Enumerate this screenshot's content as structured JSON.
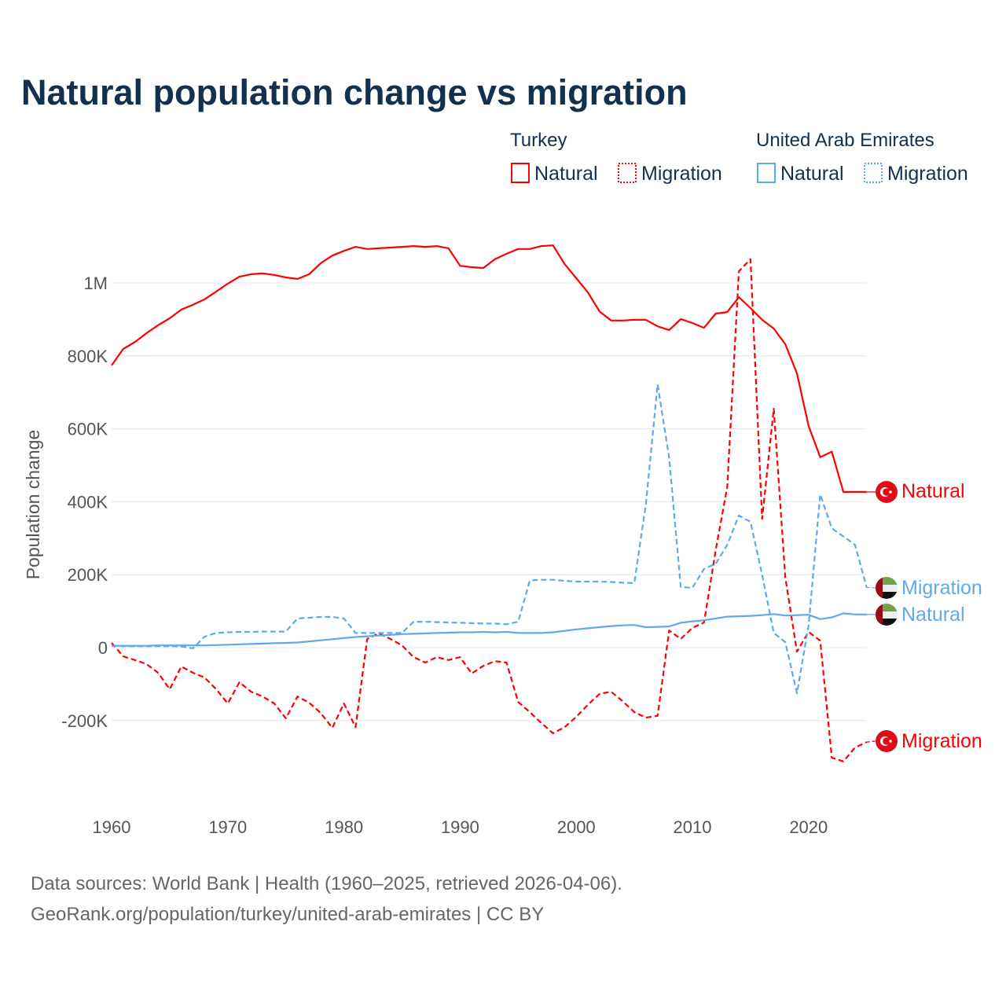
{
  "title": "Natural population change vs migration",
  "legend": {
    "groups": [
      {
        "name": "Turkey",
        "color": "#ff0000",
        "items": [
          "Natural",
          "Migration"
        ]
      },
      {
        "name": "United Arab Emirates",
        "color": "#5ea8ee",
        "items": [
          "Natural",
          "Migration"
        ]
      }
    ]
  },
  "end_labels": {
    "turkey_natural": "Natural",
    "uae_migration": "Migration",
    "uae_natural": "Natural",
    "turkey_migration": "Migration"
  },
  "footer": {
    "line1": "Data sources: World Bank | Health (1960–2025, retrieved 2026-04-06).",
    "line2": "GeoRank.org/population/turkey/united-arab-emirates | CC BY"
  },
  "chart_data": {
    "type": "line",
    "title": "Natural population change vs migration",
    "xlabel": "",
    "ylabel": "Population change",
    "xlim": [
      1960,
      2025
    ],
    "ylim": [
      -400000,
      1150000
    ],
    "grid": true,
    "legend_position": "top-right",
    "x_ticks": [
      1960,
      1970,
      1980,
      1990,
      2000,
      2010,
      2020
    ],
    "x_tick_labels": [
      "1960",
      "1970",
      "1980",
      "1990",
      "2000",
      "2010",
      "2020"
    ],
    "y_ticks": [
      -200000,
      0,
      200000,
      400000,
      600000,
      800000,
      1000000
    ],
    "y_tick_labels": [
      "-200K",
      "0",
      "200K",
      "400K",
      "600K",
      "800K",
      "1M"
    ],
    "x_start": 1960,
    "series": [
      {
        "name": "Turkey Natural",
        "color": "#ff0000",
        "dash": false,
        "values": [
          774000,
          819000,
          838000,
          862000,
          884000,
          903000,
          927000,
          940000,
          955000,
          976000,
          998000,
          1017000,
          1024000,
          1026000,
          1022000,
          1015000,
          1011000,
          1024000,
          1054000,
          1075000,
          1088000,
          1099000,
          1093000,
          1095000,
          1097000,
          1099000,
          1101000,
          1099000,
          1101000,
          1095000,
          1047000,
          1043000,
          1041000,
          1065000,
          1080000,
          1093000,
          1093000,
          1101000,
          1103000,
          1052000,
          1013000,
          974000,
          922000,
          897000,
          897000,
          899000,
          899000,
          881000,
          871000,
          901000,
          890000,
          877000,
          916000,
          920000,
          961000,
          931000,
          899000,
          875000,
          832000,
          752000,
          608000,
          522000,
          537000,
          427000,
          427000,
          427000
        ]
      },
      {
        "name": "Turkey Migration",
        "color": "#ff0000",
        "dash": true,
        "values": [
          13000,
          -24000,
          -34000,
          -45000,
          -69000,
          -114000,
          -52000,
          -69000,
          -82000,
          -114000,
          -153000,
          -95000,
          -121000,
          -134000,
          -153000,
          -194000,
          -134000,
          -151000,
          -179000,
          -220000,
          -153000,
          -218000,
          24000,
          39000,
          24000,
          6000,
          -26000,
          -41000,
          -26000,
          -34000,
          -26000,
          -71000,
          -50000,
          -37000,
          -41000,
          -149000,
          -177000,
          -207000,
          -235000,
          -218000,
          -190000,
          -157000,
          -127000,
          -121000,
          -147000,
          -177000,
          -192000,
          -187000,
          47000,
          24000,
          54000,
          69000,
          267000,
          440000,
          1032000,
          1065000,
          353000,
          655000,
          192000,
          -11000,
          43000,
          19000,
          -302000,
          -312000,
          -274000,
          -259000
        ]
      },
      {
        "name": "United Arab Emirates Natural",
        "color": "#5ea8ee",
        "dash": false,
        "values": [
          5000,
          5000,
          5000,
          5000,
          6000,
          6000,
          6000,
          6000,
          6000,
          7000,
          8000,
          9000,
          10000,
          11000,
          12000,
          13000,
          14000,
          17000,
          20000,
          23000,
          26000,
          29000,
          31000,
          33000,
          35000,
          37000,
          38000,
          39000,
          40000,
          41000,
          42000,
          42000,
          43000,
          42000,
          43000,
          40000,
          40000,
          40000,
          42000,
          46000,
          50000,
          53000,
          56000,
          59000,
          61000,
          62000,
          56000,
          57000,
          58000,
          68000,
          72000,
          75000,
          80000,
          85000,
          86000,
          87000,
          89000,
          92000,
          88000,
          89000,
          90000,
          78000,
          83000,
          94000,
          91000,
          91000
        ]
      },
      {
        "name": "United Arab Emirates Migration",
        "color": "#5ea8ee",
        "dash": true,
        "values": [
          5000,
          4000,
          4000,
          4000,
          4000,
          4000,
          3000,
          -2000,
          30000,
          40000,
          42000,
          43000,
          43000,
          44000,
          44000,
          44000,
          80000,
          82000,
          84000,
          84000,
          80000,
          40000,
          40000,
          40000,
          40000,
          40000,
          71000,
          71000,
          70000,
          69000,
          68000,
          67000,
          66000,
          66000,
          64000,
          71000,
          184000,
          186000,
          186000,
          183000,
          181000,
          181000,
          181000,
          180000,
          178000,
          177000,
          395000,
          722000,
          520000,
          166000,
          164000,
          216000,
          230000,
          282000,
          362000,
          345000,
          200000,
          40000,
          15000,
          -125000,
          60000,
          420000,
          327000,
          305000,
          282000,
          165000
        ]
      }
    ]
  }
}
